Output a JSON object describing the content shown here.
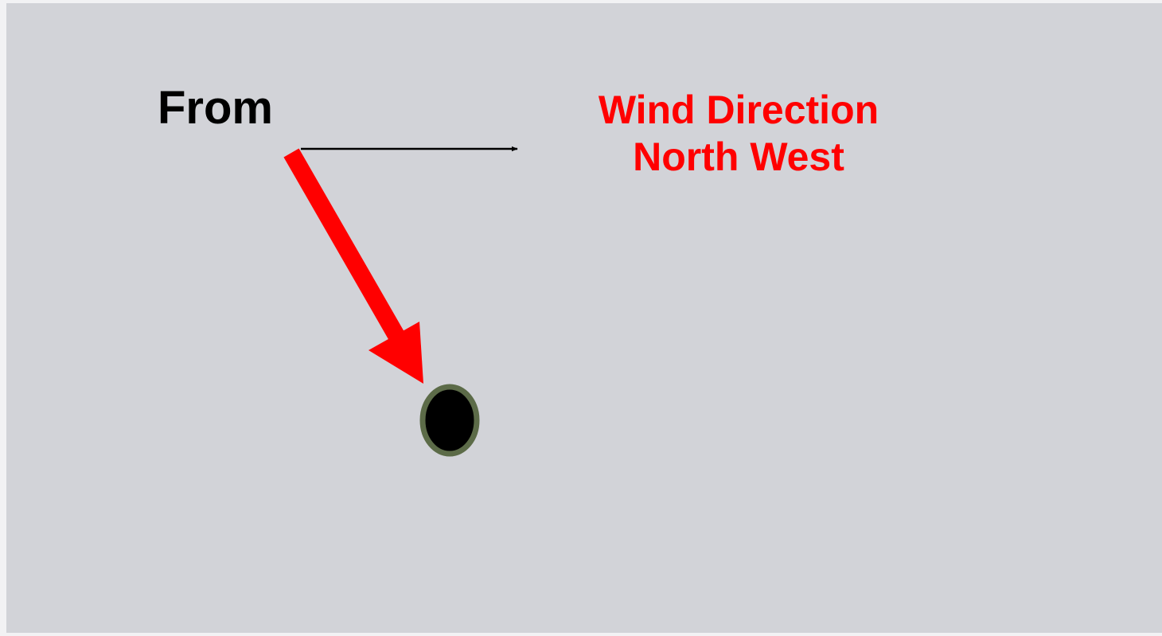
{
  "labels": {
    "from": "From",
    "title": "Wind Direction",
    "direction": "North West"
  }
}
